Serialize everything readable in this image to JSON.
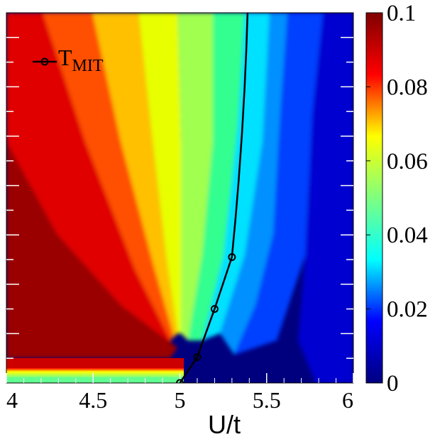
{
  "chart_data": {
    "type": "heatmap",
    "title": "",
    "xlabel": "U/t",
    "ylabel": "",
    "xlim": [
      4,
      6
    ],
    "x_ticks": [
      {
        "value": 4,
        "label": "4"
      },
      {
        "value": 4.5,
        "label": "4.5"
      },
      {
        "value": 5,
        "label": "5"
      },
      {
        "value": 5.5,
        "label": "5.5"
      },
      {
        "value": 6,
        "label": "6"
      }
    ],
    "y_ticks_labeled": false,
    "colorbar": {
      "range": [
        0,
        0.1
      ],
      "ticks": [
        "0",
        "0.02",
        "0.04",
        "0.06",
        "0.08",
        "0.1"
      ],
      "tick_values": [
        0,
        0.02,
        0.04,
        0.06,
        0.08,
        0.1
      ],
      "colormap": [
        "#00007f",
        "#0000ff",
        "#00ffff",
        "#7fff7f",
        "#ffff00",
        "#ff0000",
        "#7f0000"
      ]
    },
    "series": [
      {
        "name": "T_MIT",
        "label_main": "T",
        "label_sub": "MIT",
        "color": "#000000",
        "x": [
          5.0,
          5.1,
          5.2,
          5.3
        ],
        "y_fraction_of_axis": [
          0.0,
          0.07,
          0.2,
          0.34
        ],
        "line_extends_to_top_at_x": 5.39
      }
    ],
    "grid": false,
    "legend_position": "top-left"
  }
}
